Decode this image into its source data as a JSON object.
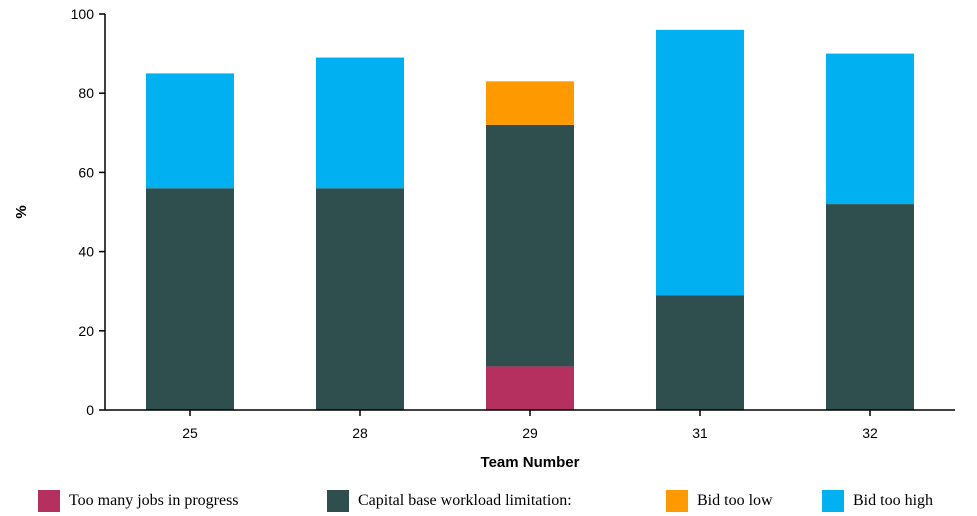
{
  "chart_data": {
    "type": "bar",
    "stacked": true,
    "categories": [
      "25",
      "28",
      "29",
      "31",
      "32"
    ],
    "series": [
      {
        "name": "Too many jobs in progress",
        "values": [
          0,
          0,
          11,
          0,
          0
        ],
        "color": "#b5305e"
      },
      {
        "name": "Capital base workload limitation:",
        "values": [
          56,
          56,
          61,
          29,
          52
        ],
        "color": "#2f4f4f"
      },
      {
        "name": "Bid too low",
        "values": [
          0,
          0,
          11,
          0,
          0
        ],
        "color": "#ff9900"
      },
      {
        "name": "Bid too high",
        "values": [
          29,
          33,
          0,
          67,
          38
        ],
        "color": "#00b0f0"
      }
    ],
    "xlabel": "Team Number",
    "ylabel": "%",
    "ylim": [
      0,
      100
    ],
    "yticks": [
      0,
      20,
      40,
      60,
      80,
      100
    ],
    "grid": false,
    "legend_position": "bottom"
  }
}
